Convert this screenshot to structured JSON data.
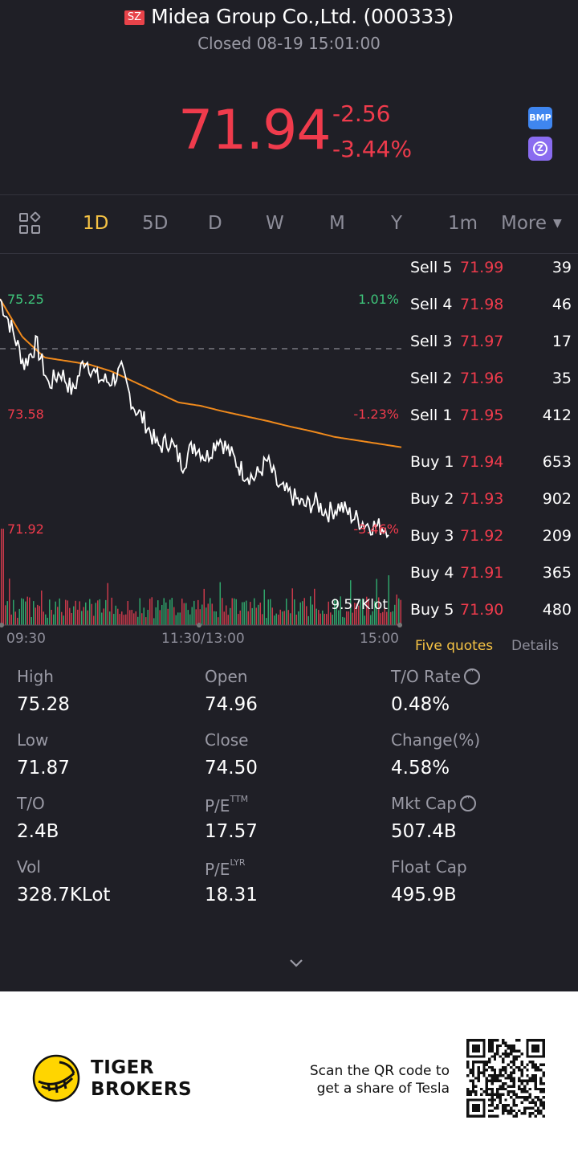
{
  "header": {
    "exchange_badge": "SZ",
    "title": "Midea Group Co.,Ltd. (000333)",
    "status": "Closed 08-19 15:01:00",
    "price": "71.94",
    "change": "-2.56",
    "change_pct": "-3.44%",
    "badge_bmp": "BMP",
    "badge_z": "Z",
    "price_color": "#ef3b4c"
  },
  "tabs": [
    "1D",
    "5D",
    "D",
    "W",
    "M",
    "Y",
    "1m",
    "More"
  ],
  "active_tab": "1D",
  "chart": {
    "label_high": "75.25",
    "label_high_pct": "1.01%",
    "label_mid": "73.58",
    "label_mid_pct": "-1.23%",
    "label_low": "71.92",
    "label_low_pct": "-3.46%",
    "volume_label": "9.57Klot",
    "time_start": "09:30",
    "time_mid": "11:30/13:00",
    "time_end": "15:00"
  },
  "chart_data": {
    "type": "line",
    "series": [
      {
        "values": [
          75.25,
          74.8,
          74.3,
          74.6,
          74.0,
          74.2,
          73.9,
          74.4,
          74.1,
          74.05,
          74.2,
          73.7,
          73.45,
          73.1,
          73.2,
          72.85,
          73.15,
          72.95,
          73.25,
          73.0,
          72.75,
          72.65,
          72.9,
          72.5,
          72.4,
          72.25,
          72.3,
          72.15,
          72.25,
          72.1,
          72.0,
          71.95,
          71.94
        ]
      },
      {
        "values": [
          75.25,
          74.7,
          74.4,
          74.35,
          74.3,
          74.2,
          74.05,
          73.9,
          73.75,
          73.7,
          73.62,
          73.55,
          73.48,
          73.4,
          73.33,
          73.25,
          73.2,
          73.15,
          73.1
        ]
      }
    ]
  },
  "orderbook": {
    "sell": [
      {
        "label": "Sell 5",
        "price": "71.99",
        "vol": "39"
      },
      {
        "label": "Sell 4",
        "price": "71.98",
        "vol": "46"
      },
      {
        "label": "Sell 3",
        "price": "71.97",
        "vol": "17"
      },
      {
        "label": "Sell 2",
        "price": "71.96",
        "vol": "35"
      },
      {
        "label": "Sell 1",
        "price": "71.95",
        "vol": "412"
      }
    ],
    "buy": [
      {
        "label": "Buy 1",
        "price": "71.94",
        "vol": "653"
      },
      {
        "label": "Buy 2",
        "price": "71.93",
        "vol": "902"
      },
      {
        "label": "Buy 3",
        "price": "71.92",
        "vol": "209"
      },
      {
        "label": "Buy 4",
        "price": "71.91",
        "vol": "365"
      },
      {
        "label": "Buy 5",
        "price": "71.90",
        "vol": "480"
      }
    ],
    "tab_five": "Five quotes",
    "tab_details": "Details"
  },
  "stats": {
    "high_label": "High",
    "high": "75.28",
    "open_label": "Open",
    "open": "74.96",
    "to_rate_label": "T/O Rate",
    "to_rate": "0.48%",
    "low_label": "Low",
    "low": "71.87",
    "close_label": "Close",
    "close": "74.50",
    "change_label": "Change(%)",
    "change": "4.58%",
    "to_label": "T/O",
    "to": "2.4B",
    "pe_ttm_label": "P/E",
    "pe_ttm_sup": "TTM",
    "pe_ttm": "17.57",
    "mkt_cap_label": "Mkt Cap",
    "mkt_cap": "507.4B",
    "vol_label": "Vol",
    "vol": "328.7KLot",
    "pe_lyr_label": "P/E",
    "pe_lyr_sup": "LYR",
    "pe_lyr": "18.31",
    "float_cap_label": "Float Cap",
    "float_cap": "495.9B"
  },
  "footer": {
    "brand_line1": "TIGER",
    "brand_line2": "BROKERS",
    "scan_line1": "Scan the QR code to",
    "scan_line2": "get a share of Tesla"
  }
}
